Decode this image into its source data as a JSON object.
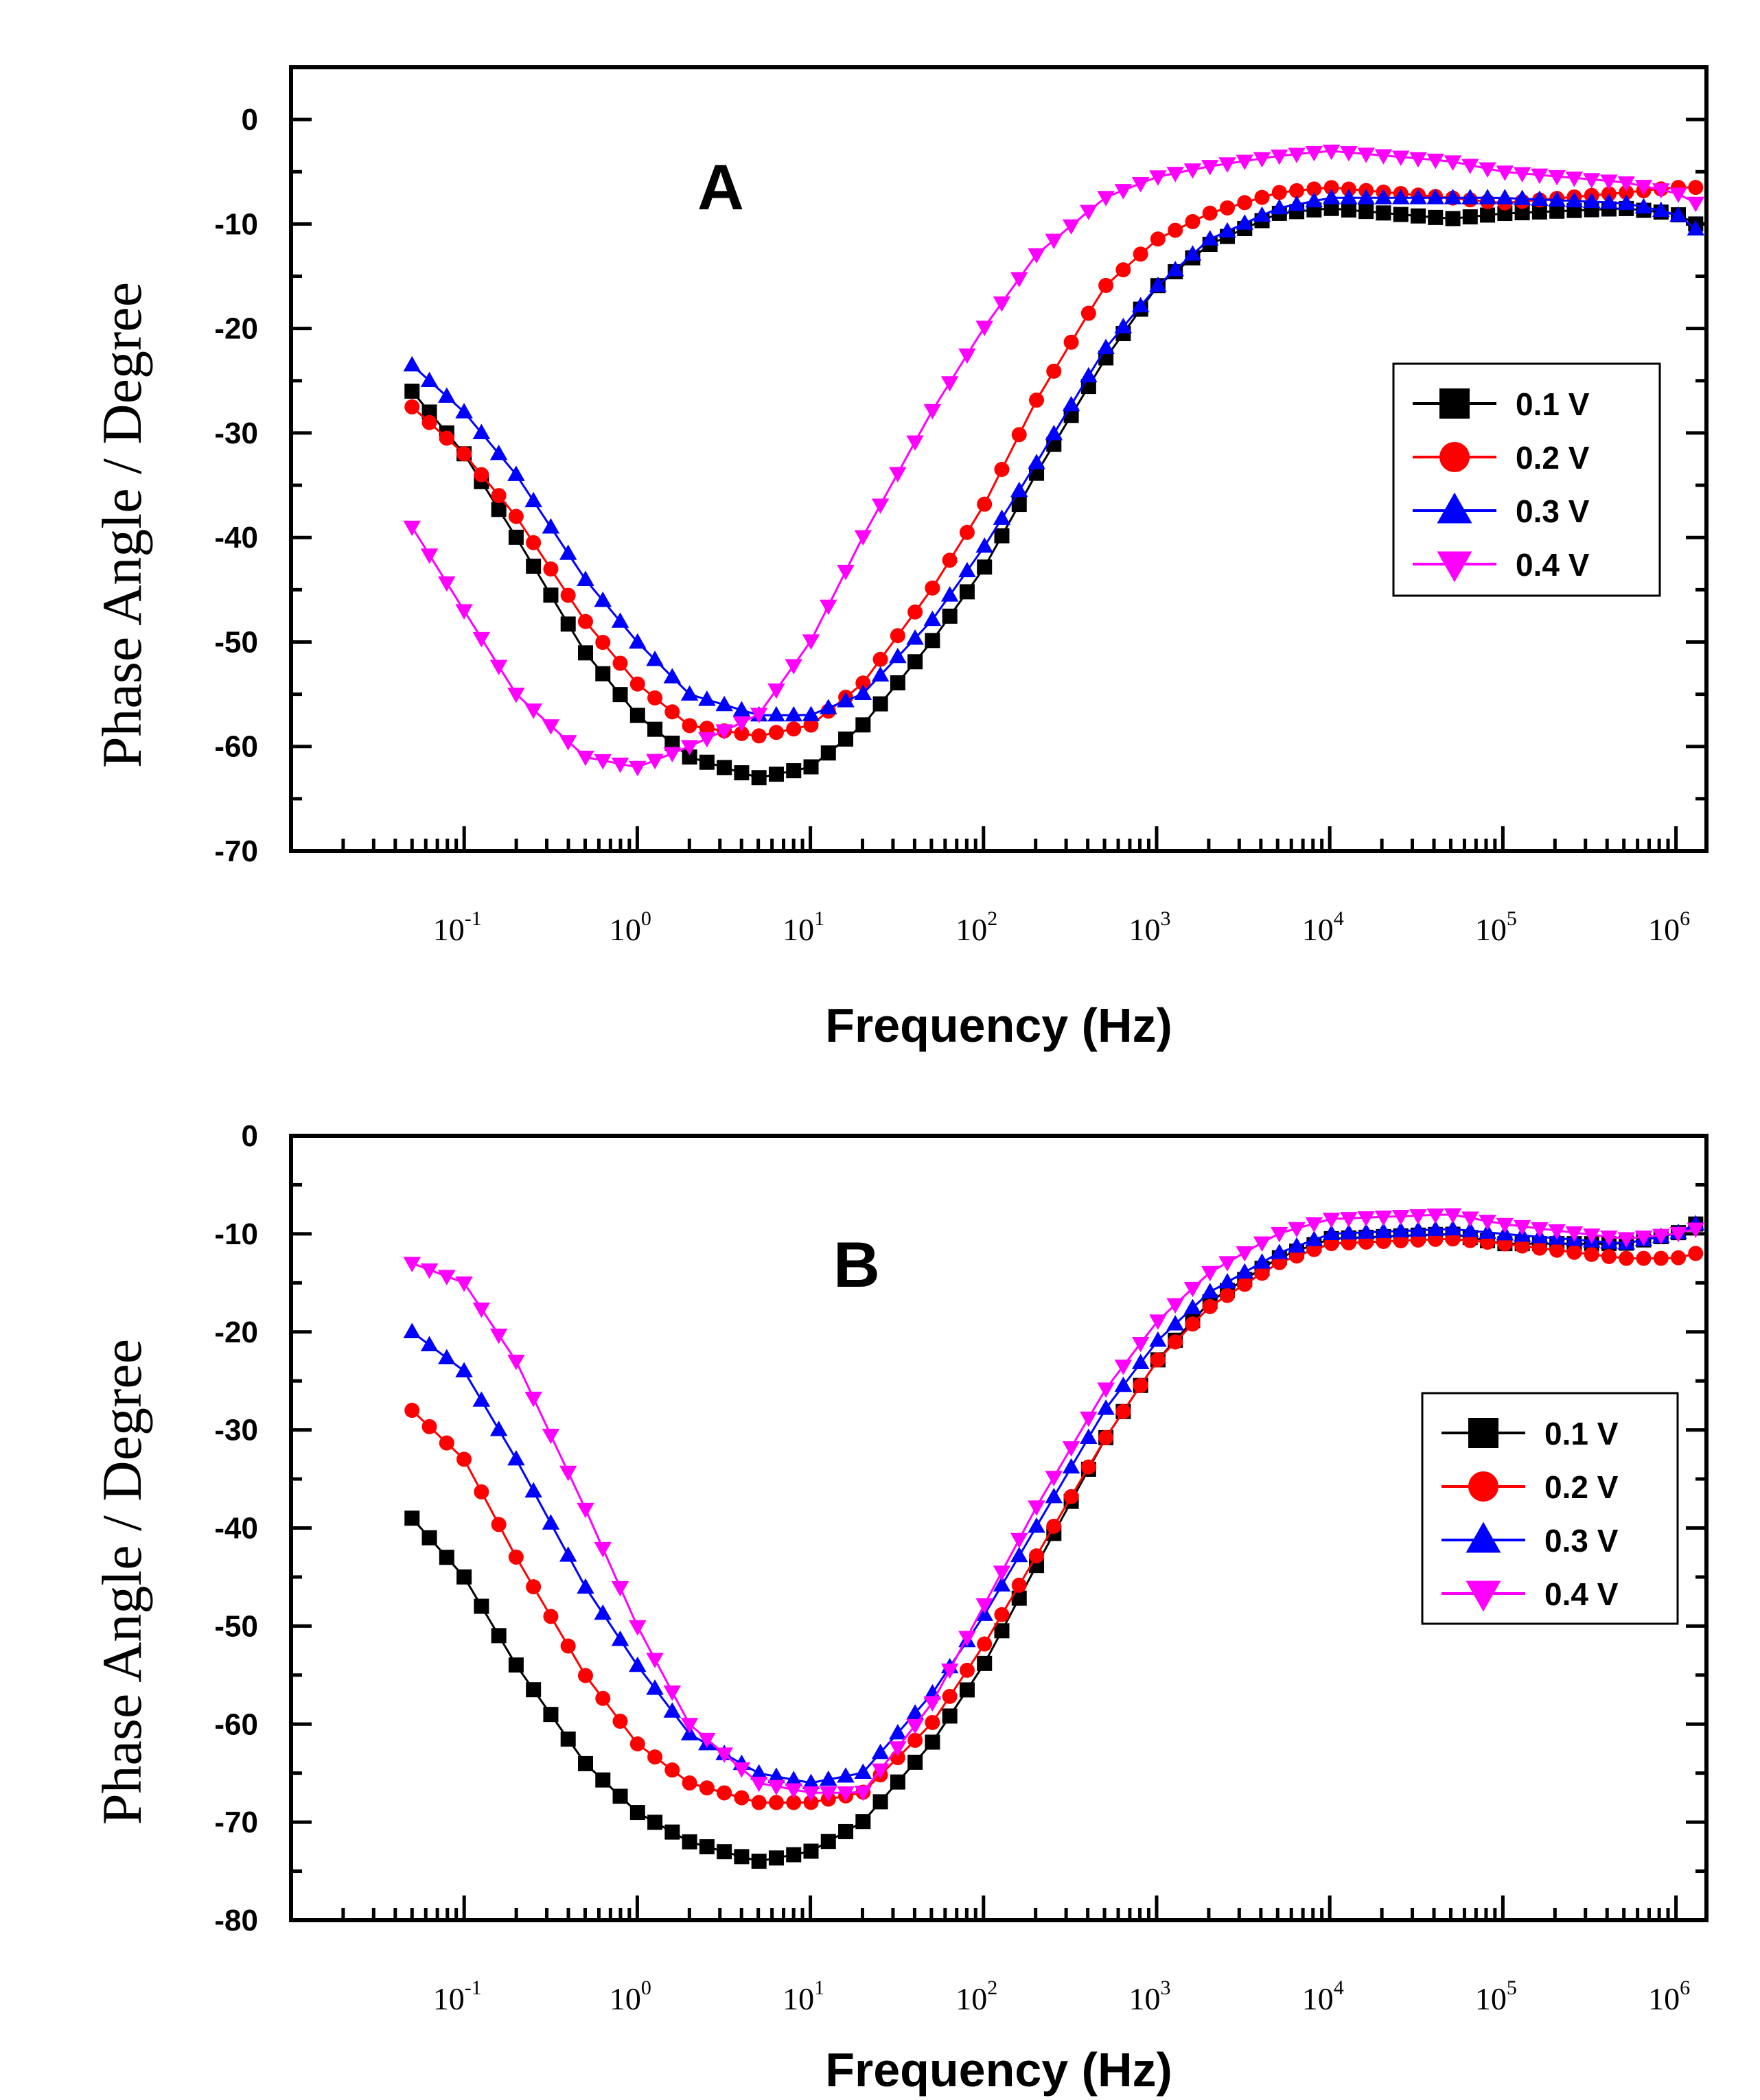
{
  "figure": {
    "panels": [
      {
        "label": "A",
        "xlabel": "Frequency (Hz)",
        "ylabel": "Phase Angle / Degree",
        "legend_position": "right",
        "ylim": [
          -70,
          5
        ],
        "yticks": [
          "0",
          "-10",
          "-20",
          "-30",
          "-40",
          "-50",
          "-60",
          "-70"
        ]
      },
      {
        "label": "B",
        "xlabel": "Frequency (Hz)",
        "ylabel": "Phase Angle / Degree",
        "legend_position": "right",
        "ylim": [
          -80,
          0
        ],
        "yticks": [
          "0",
          "-10",
          "-20",
          "-30",
          "-40",
          "-50",
          "-60",
          "-70",
          "-80"
        ]
      }
    ],
    "xticks": [
      {
        "base": "10",
        "exp": "-1"
      },
      {
        "base": "10",
        "exp": "0"
      },
      {
        "base": "10",
        "exp": "1"
      },
      {
        "base": "10",
        "exp": "2"
      },
      {
        "base": "10",
        "exp": "3"
      },
      {
        "base": "10",
        "exp": "4"
      },
      {
        "base": "10",
        "exp": "5"
      },
      {
        "base": "10",
        "exp": "6"
      }
    ]
  },
  "series_styles": [
    {
      "name": "0.1 V",
      "color": "#000000",
      "marker": "square"
    },
    {
      "name": "0.2 V",
      "color": "#ff0000",
      "marker": "circle"
    },
    {
      "name": "0.3 V",
      "color": "#0000ff",
      "marker": "triangle-up"
    },
    {
      "name": "0.4 V",
      "color": "#ff00ff",
      "marker": "triangle-down"
    }
  ],
  "chart_data": [
    {
      "type": "line",
      "title": "A",
      "xlabel": "Frequency (Hz)",
      "ylabel": "Phase Angle / Degree",
      "x_scale": "log",
      "xlim": [
        0.01,
        1500000
      ],
      "ylim": [
        -70,
        5
      ],
      "grid": false,
      "legend": "right",
      "series": [
        {
          "name": "0.1 V",
          "x": [
            0.05,
            0.1,
            0.2,
            0.5,
            1,
            2,
            5,
            10,
            20,
            50,
            100,
            200,
            500,
            1000,
            2000,
            5000,
            10000,
            50000,
            100000,
            500000,
            1000000,
            1300000
          ],
          "y": [
            -26,
            -32,
            -40,
            -51,
            -57,
            -61,
            -63,
            -62,
            -58,
            -50,
            -43,
            -34,
            -23,
            -16,
            -12,
            -9,
            -8.5,
            -9.5,
            -9,
            -8.5,
            -9,
            -10
          ]
        },
        {
          "name": "0.2 V",
          "x": [
            0.05,
            0.1,
            0.2,
            0.5,
            1,
            2,
            5,
            10,
            20,
            50,
            100,
            200,
            500,
            1000,
            2000,
            5000,
            10000,
            50000,
            100000,
            500000,
            1000000,
            1300000
          ],
          "y": [
            -27.5,
            -32,
            -38,
            -48,
            -54,
            -58,
            -59,
            -58,
            -54,
            -45,
            -37,
            -27,
            -16,
            -11.5,
            -9,
            -7,
            -6.5,
            -7.5,
            -8,
            -7,
            -6.5,
            -6.5
          ]
        },
        {
          "name": "0.3 V",
          "x": [
            0.05,
            0.1,
            0.2,
            0.5,
            1,
            2,
            5,
            10,
            20,
            50,
            100,
            200,
            500,
            1000,
            2000,
            5000,
            10000,
            50000,
            100000,
            500000,
            1000000,
            1300000
          ],
          "y": [
            -23.5,
            -28,
            -34,
            -44,
            -50,
            -55,
            -57,
            -57,
            -55,
            -48,
            -41,
            -33,
            -22,
            -16,
            -11.5,
            -8.5,
            -7.5,
            -7.5,
            -7.5,
            -8,
            -9,
            -10.5
          ]
        },
        {
          "name": "0.4 V",
          "x": [
            0.05,
            0.1,
            0.2,
            0.5,
            1,
            2,
            5,
            10,
            20,
            50,
            100,
            200,
            500,
            1000,
            2000,
            5000,
            10000,
            50000,
            100000,
            500000,
            1000000,
            1300000
          ],
          "y": [
            -39,
            -47,
            -55,
            -61,
            -62,
            -60,
            -57,
            -50,
            -40,
            -28,
            -20,
            -13,
            -7.5,
            -5.5,
            -4.5,
            -3.5,
            -3,
            -4,
            -5,
            -6,
            -7,
            -8
          ]
        }
      ]
    },
    {
      "type": "line",
      "title": "B",
      "xlabel": "Frequency (Hz)",
      "ylabel": "Phase Angle / Degree",
      "x_scale": "log",
      "xlim": [
        0.01,
        1500000
      ],
      "ylim": [
        -80,
        0
      ],
      "grid": false,
      "legend": "right",
      "series": [
        {
          "name": "0.1 V",
          "x": [
            0.05,
            0.1,
            0.2,
            0.5,
            1,
            2,
            5,
            10,
            20,
            50,
            100,
            200,
            500,
            1000,
            2000,
            5000,
            10000,
            50000,
            100000,
            500000,
            1000000,
            1300000
          ],
          "y": [
            -39,
            -45,
            -54,
            -64,
            -69,
            -72,
            -74,
            -73,
            -70,
            -62,
            -54,
            -44,
            -31,
            -23,
            -17,
            -12.5,
            -10.5,
            -10,
            -11,
            -11,
            -10,
            -9
          ]
        },
        {
          "name": "0.2 V",
          "x": [
            0.05,
            0.1,
            0.2,
            0.5,
            1,
            2,
            5,
            10,
            20,
            50,
            100,
            200,
            500,
            1000,
            2000,
            5000,
            10000,
            50000,
            100000,
            500000,
            1000000,
            1300000
          ],
          "y": [
            -28,
            -33,
            -43,
            -55,
            -62,
            -66,
            -68,
            -68,
            -67,
            -60,
            -52,
            -43,
            -31,
            -23,
            -17.5,
            -13,
            -11,
            -10.5,
            -11,
            -12.5,
            -12.5,
            -12
          ]
        },
        {
          "name": "0.3 V",
          "x": [
            0.05,
            0.1,
            0.2,
            0.5,
            1,
            2,
            5,
            10,
            20,
            50,
            100,
            200,
            500,
            1000,
            2000,
            5000,
            10000,
            50000,
            100000,
            500000,
            1000000,
            1300000
          ],
          "y": [
            -20,
            -24,
            -33,
            -46,
            -54,
            -61,
            -65,
            -66,
            -65,
            -57,
            -49,
            -40,
            -28,
            -21,
            -16,
            -12,
            -10,
            -9.5,
            -10,
            -11,
            -10,
            -9
          ]
        },
        {
          "name": "0.4 V",
          "x": [
            0.05,
            0.1,
            0.2,
            0.5,
            1,
            2,
            5,
            10,
            20,
            50,
            100,
            200,
            500,
            1000,
            2000,
            5000,
            10000,
            50000,
            100000,
            500000,
            1000000,
            1300000
          ],
          "y": [
            -13,
            -15,
            -23,
            -38,
            -50,
            -60,
            -66,
            -67,
            -67,
            -58,
            -48,
            -38,
            -26,
            -19,
            -14,
            -10,
            -8.5,
            -8,
            -9,
            -10.5,
            -10,
            -9.5
          ]
        }
      ]
    }
  ]
}
